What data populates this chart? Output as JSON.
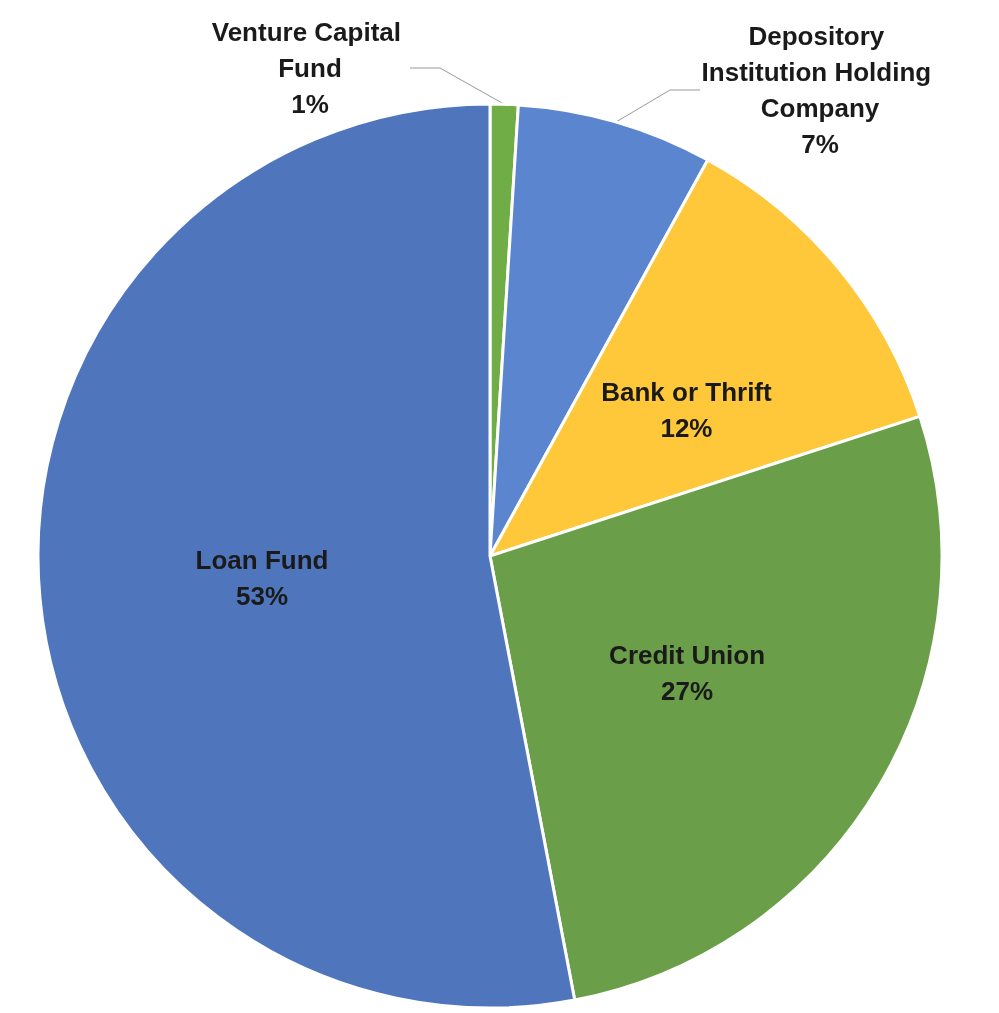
{
  "chart_data": {
    "type": "pie",
    "categories": [
      "Venture Capital Fund",
      "Depository Institution Holding Company",
      "Bank or Thrift",
      "Credit Union",
      "Loan Fund"
    ],
    "values": [
      1,
      7,
      12,
      27,
      53
    ],
    "value_labels": [
      "1%",
      "7%",
      "12%",
      "27%",
      "53%"
    ],
    "colors": [
      "#70ad47",
      "#5b86cf",
      "#ffc83a",
      "#6a9e48",
      "#4f76bd"
    ],
    "legend": false
  }
}
